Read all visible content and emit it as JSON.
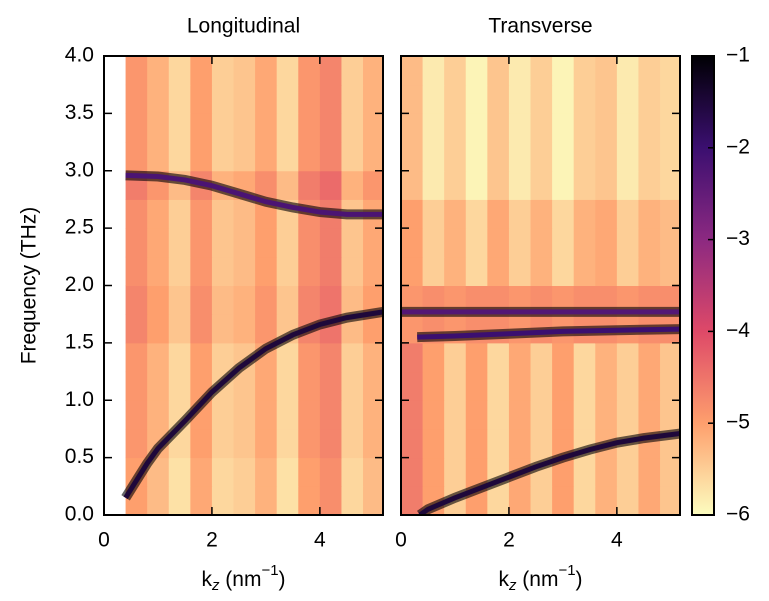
{
  "chart_data": [
    {
      "type": "heatmap",
      "title": "Longitudinal",
      "xlabel": {
        "base": "k",
        "sub": "z",
        "unit": " (nm",
        "sup": "−1",
        "end": ")"
      },
      "ylabel": "Frequency (THz)",
      "xlim": [
        0,
        5.17
      ],
      "ylim": [
        0,
        4.0
      ],
      "xticks": [
        0,
        2,
        4
      ],
      "yticks": [
        {
          "value": 0,
          "label": "0.0"
        },
        {
          "value": 0.5,
          "label": "0.5"
        },
        {
          "value": 1,
          "label": "1.0"
        },
        {
          "value": 1.5,
          "label": "1.5"
        },
        {
          "value": 2,
          "label": "2.0"
        },
        {
          "value": 2.5,
          "label": "2.5"
        },
        {
          "value": 3,
          "label": "3.0"
        },
        {
          "value": 3.5,
          "label": "3.5"
        },
        {
          "value": 4,
          "label": "4.0"
        }
      ],
      "ytick_labels": true,
      "xbins": [
        0.4,
        0.8,
        1.2,
        1.6,
        2.0,
        2.4,
        2.8,
        3.2,
        3.6,
        4.0,
        4.4,
        4.8,
        5.17
      ],
      "ybins": [
        0,
        0.25,
        0.5,
        0.75,
        1.0,
        1.25,
        1.5,
        1.75,
        2.0,
        2.25,
        2.5,
        2.75,
        3.0,
        3.25,
        3.5,
        3.75,
        4.0
      ],
      "z": [
        [
          -5.0,
          -5.3,
          -5.7,
          -5.1,
          -5.6,
          -5.5,
          -5.2,
          -5.7,
          -5.0,
          -4.8,
          -5.6,
          -5.3
        ],
        [
          -5.0,
          -5.3,
          -5.7,
          -5.1,
          -5.6,
          -5.5,
          -5.2,
          -5.7,
          -5.0,
          -4.8,
          -5.6,
          -5.3
        ],
        [
          -4.9,
          -5.2,
          -5.6,
          -5.0,
          -5.5,
          -5.4,
          -5.1,
          -5.6,
          -4.9,
          -4.7,
          -5.5,
          -5.2
        ],
        [
          -4.9,
          -5.2,
          -5.6,
          -5.0,
          -5.5,
          -5.4,
          -5.1,
          -5.6,
          -4.9,
          -4.7,
          -5.5,
          -5.2
        ],
        [
          -4.9,
          -5.2,
          -5.6,
          -5.0,
          -5.5,
          -5.4,
          -5.1,
          -5.6,
          -4.9,
          -4.7,
          -5.5,
          -5.2
        ],
        [
          -4.9,
          -5.2,
          -5.6,
          -5.0,
          -5.5,
          -5.4,
          -5.1,
          -5.6,
          -4.9,
          -4.7,
          -5.5,
          -5.2
        ],
        [
          -4.7,
          -5.0,
          -5.4,
          -4.8,
          -5.3,
          -5.2,
          -4.9,
          -5.4,
          -4.7,
          -4.5,
          -5.3,
          -5.0
        ],
        [
          -4.7,
          -5.0,
          -5.4,
          -4.8,
          -5.3,
          -5.2,
          -4.9,
          -5.4,
          -4.7,
          -4.5,
          -5.3,
          -5.0
        ],
        [
          -4.8,
          -5.1,
          -5.5,
          -4.9,
          -5.4,
          -5.3,
          -5.0,
          -5.5,
          -4.8,
          -4.6,
          -5.4,
          -5.1
        ],
        [
          -4.8,
          -5.1,
          -5.5,
          -4.9,
          -5.4,
          -5.3,
          -5.0,
          -5.5,
          -4.8,
          -4.6,
          -5.4,
          -5.1
        ],
        [
          -4.8,
          -5.1,
          -5.5,
          -4.9,
          -5.4,
          -5.3,
          -5.0,
          -5.5,
          -4.8,
          -4.6,
          -5.4,
          -5.1
        ],
        [
          -4.6,
          -4.9,
          -5.3,
          -4.7,
          -5.2,
          -5.1,
          -4.8,
          -5.3,
          -4.6,
          -4.4,
          -5.2,
          -4.9
        ],
        [
          -4.9,
          -5.2,
          -5.6,
          -5.0,
          -5.5,
          -5.4,
          -5.1,
          -5.6,
          -4.9,
          -4.7,
          -5.5,
          -5.2
        ],
        [
          -4.9,
          -5.2,
          -5.6,
          -5.0,
          -5.5,
          -5.4,
          -5.1,
          -5.6,
          -4.9,
          -4.7,
          -5.5,
          -5.2
        ],
        [
          -4.9,
          -5.2,
          -5.6,
          -5.0,
          -5.5,
          -5.4,
          -5.1,
          -5.6,
          -4.9,
          -4.7,
          -5.5,
          -5.2
        ],
        [
          -4.9,
          -5.2,
          -5.6,
          -5.0,
          -5.5,
          -5.4,
          -5.1,
          -5.6,
          -4.9,
          -4.7,
          -5.5,
          -5.2
        ]
      ],
      "ridges": [
        {
          "x": [
            0.4,
            1.0,
            1.5,
            2.0,
            2.5,
            3.0,
            3.5,
            4.0,
            4.5,
            5.17
          ],
          "y": [
            2.96,
            2.95,
            2.92,
            2.87,
            2.8,
            2.73,
            2.68,
            2.64,
            2.62,
            2.62
          ],
          "value": -2.2
        },
        {
          "x": [
            0.4,
            0.6,
            0.8,
            1.0,
            1.5,
            2.0,
            2.5,
            3.0,
            3.5,
            4.0,
            4.5,
            5.17
          ],
          "y": [
            0.15,
            0.3,
            0.45,
            0.58,
            0.82,
            1.07,
            1.28,
            1.45,
            1.57,
            1.66,
            1.72,
            1.77
          ],
          "value": -1.5
        }
      ]
    },
    {
      "type": "heatmap",
      "title": "Transverse",
      "xlabel": {
        "base": "k",
        "sub": "z",
        "unit": " (nm",
        "sup": "−1",
        "end": ")"
      },
      "xlim": [
        0,
        5.17
      ],
      "ylim": [
        0,
        4.0
      ],
      "xticks": [
        0,
        2,
        4
      ],
      "yticks": [
        0,
        0.5,
        1,
        1.5,
        2,
        2.5,
        3,
        3.5,
        4
      ],
      "ytick_labels": false,
      "xbins": [
        0,
        0.4,
        0.8,
        1.2,
        1.6,
        2.0,
        2.4,
        2.8,
        3.2,
        3.6,
        4.0,
        4.4,
        4.8,
        5.17
      ],
      "ybins": [
        0,
        0.25,
        0.5,
        0.75,
        1.0,
        1.25,
        1.5,
        1.75,
        2.0,
        2.25,
        2.5,
        2.75,
        3.0,
        3.25,
        3.5,
        3.75,
        4.0
      ],
      "z": [
        [
          -4.6,
          -5.0,
          -5.5,
          -5.0,
          -5.6,
          -5.1,
          -5.5,
          -5.0,
          -5.6,
          -5.2,
          -5.5,
          -5.1,
          -5.4
        ],
        [
          -4.6,
          -5.0,
          -5.5,
          -5.0,
          -5.6,
          -5.1,
          -5.5,
          -5.0,
          -5.6,
          -5.2,
          -5.5,
          -5.1,
          -5.4
        ],
        [
          -4.6,
          -5.0,
          -5.5,
          -5.0,
          -5.6,
          -5.1,
          -5.5,
          -5.0,
          -5.6,
          -5.2,
          -5.5,
          -5.1,
          -5.4
        ],
        [
          -4.6,
          -5.0,
          -5.5,
          -5.0,
          -5.6,
          -5.1,
          -5.5,
          -5.0,
          -5.6,
          -5.2,
          -5.5,
          -5.1,
          -5.4
        ],
        [
          -4.6,
          -5.0,
          -5.5,
          -5.0,
          -5.6,
          -5.1,
          -5.5,
          -5.0,
          -5.6,
          -5.2,
          -5.5,
          -5.1,
          -5.4
        ],
        [
          -4.6,
          -5.0,
          -5.5,
          -5.0,
          -5.6,
          -5.1,
          -5.5,
          -5.0,
          -5.6,
          -5.2,
          -5.5,
          -5.1,
          -5.4
        ],
        [
          -4.9,
          -4.8,
          -4.9,
          -4.8,
          -4.8,
          -4.9,
          -4.8,
          -4.9,
          -4.8,
          -4.8,
          -4.9,
          -4.8,
          -4.8
        ],
        [
          -4.9,
          -4.8,
          -4.9,
          -4.8,
          -4.8,
          -4.9,
          -4.8,
          -4.9,
          -4.8,
          -4.8,
          -4.9,
          -4.8,
          -4.8
        ],
        [
          -5.0,
          -5.5,
          -5.2,
          -5.6,
          -5.1,
          -5.5,
          -5.2,
          -5.6,
          -5.2,
          -5.1,
          -5.5,
          -5.2,
          -5.3
        ],
        [
          -5.0,
          -5.5,
          -5.2,
          -5.6,
          -5.1,
          -5.5,
          -5.2,
          -5.6,
          -5.2,
          -5.1,
          -5.5,
          -5.2,
          -5.3
        ],
        [
          -5.0,
          -5.5,
          -5.2,
          -5.6,
          -5.1,
          -5.5,
          -5.2,
          -5.6,
          -5.2,
          -5.1,
          -5.5,
          -5.2,
          -5.3
        ],
        [
          -5.3,
          -5.8,
          -5.5,
          -5.9,
          -5.4,
          -5.8,
          -5.5,
          -5.9,
          -5.5,
          -5.4,
          -5.8,
          -5.5,
          -5.6
        ],
        [
          -5.3,
          -5.8,
          -5.5,
          -5.9,
          -5.4,
          -5.8,
          -5.5,
          -5.9,
          -5.5,
          -5.4,
          -5.8,
          -5.5,
          -5.6
        ],
        [
          -5.3,
          -5.8,
          -5.5,
          -5.9,
          -5.4,
          -5.8,
          -5.5,
          -5.9,
          -5.5,
          -5.4,
          -5.8,
          -5.5,
          -5.6
        ],
        [
          -5.3,
          -5.8,
          -5.5,
          -5.9,
          -5.4,
          -5.8,
          -5.5,
          -5.9,
          -5.5,
          -5.4,
          -5.8,
          -5.5,
          -5.6
        ],
        [
          -5.3,
          -5.8,
          -5.5,
          -5.9,
          -5.4,
          -5.8,
          -5.5,
          -5.9,
          -5.5,
          -5.4,
          -5.8,
          -5.5,
          -5.6
        ]
      ],
      "ridges": [
        {
          "x": [
            0,
            1,
            2,
            3,
            4,
            5.17
          ],
          "y": [
            1.77,
            1.77,
            1.77,
            1.77,
            1.77,
            1.77
          ],
          "value": -2.3
        },
        {
          "x": [
            0.3,
            1,
            2,
            3,
            4,
            5.17
          ],
          "y": [
            1.55,
            1.56,
            1.58,
            1.6,
            1.61,
            1.62
          ],
          "value": -2.0
        },
        {
          "x": [
            0.35,
            0.5,
            1.0,
            1.5,
            2.0,
            2.5,
            3.0,
            3.5,
            4.0,
            4.5,
            5.17
          ],
          "y": [
            0.0,
            0.05,
            0.15,
            0.24,
            0.33,
            0.42,
            0.5,
            0.57,
            0.63,
            0.67,
            0.71
          ],
          "value": -1.5
        }
      ]
    }
  ],
  "colorbar": {
    "lim": [
      -6,
      -1
    ],
    "ticks": [
      {
        "value": -1,
        "label": "−1"
      },
      {
        "value": -2,
        "label": "−2"
      },
      {
        "value": -3,
        "label": "−3"
      },
      {
        "value": -4,
        "label": "−4"
      },
      {
        "value": -5,
        "label": "−5"
      },
      {
        "value": -6,
        "label": "−6"
      }
    ],
    "colormap": [
      "#fcfdbf",
      "#fe9f6d",
      "#de4968",
      "#8c2981",
      "#3b0f70",
      "#000004"
    ]
  }
}
